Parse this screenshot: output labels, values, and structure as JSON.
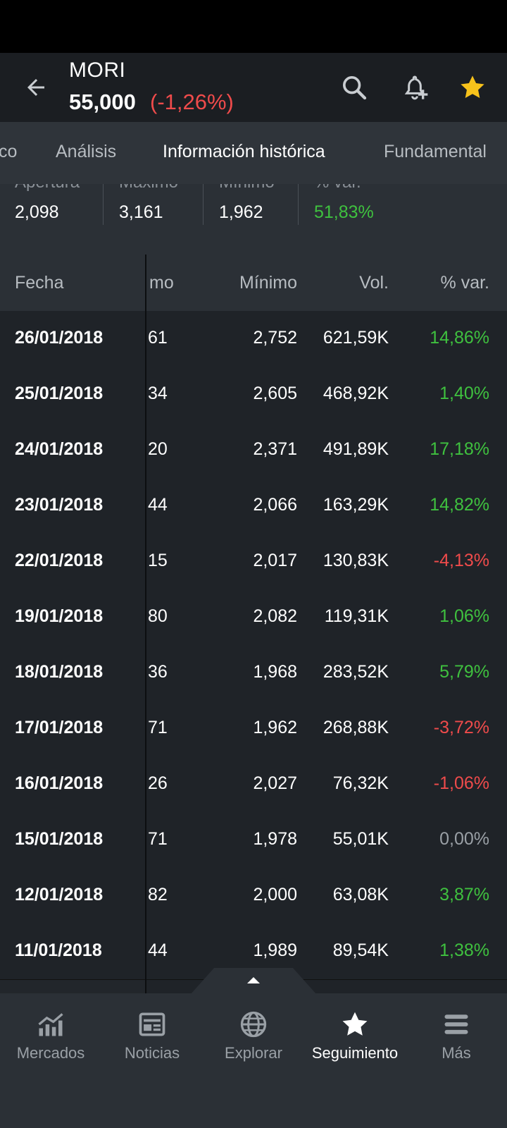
{
  "header": {
    "ticker": "MORI",
    "price": "55,000",
    "change": "(-1,26%)"
  },
  "tabs": [
    {
      "label": "co"
    },
    {
      "label": "Análisis"
    },
    {
      "label": "Información histórica"
    },
    {
      "label": "Fundamental"
    }
  ],
  "summary": [
    {
      "label": "Apertura",
      "value": "2,098"
    },
    {
      "label": "Máximo",
      "value": "3,161"
    },
    {
      "label": "Mínimo",
      "value": "1,962"
    },
    {
      "label": "% var.",
      "value": "51,83%"
    }
  ],
  "table": {
    "headers": {
      "date": "Fecha",
      "max": "mo",
      "min": "Mínimo",
      "vol": "Vol.",
      "var": "% var."
    },
    "rows": [
      {
        "date": "26/01/2018",
        "max": "61",
        "min": "2,752",
        "vol": "621,59K",
        "var": "14,86%"
      },
      {
        "date": "25/01/2018",
        "max": "34",
        "min": "2,605",
        "vol": "468,92K",
        "var": "1,40%"
      },
      {
        "date": "24/01/2018",
        "max": "20",
        "min": "2,371",
        "vol": "491,89K",
        "var": "17,18%"
      },
      {
        "date": "23/01/2018",
        "max": "44",
        "min": "2,066",
        "vol": "163,29K",
        "var": "14,82%"
      },
      {
        "date": "22/01/2018",
        "max": "15",
        "min": "2,017",
        "vol": "130,83K",
        "var": "-4,13%"
      },
      {
        "date": "19/01/2018",
        "max": "80",
        "min": "2,082",
        "vol": "119,31K",
        "var": "1,06%"
      },
      {
        "date": "18/01/2018",
        "max": "36",
        "min": "1,968",
        "vol": "283,52K",
        "var": "5,79%"
      },
      {
        "date": "17/01/2018",
        "max": "71",
        "min": "1,962",
        "vol": "268,88K",
        "var": "-3,72%"
      },
      {
        "date": "16/01/2018",
        "max": "26",
        "min": "2,027",
        "vol": "76,32K",
        "var": "-1,06%"
      },
      {
        "date": "15/01/2018",
        "max": "71",
        "min": "1,978",
        "vol": "55,01K",
        "var": "0,00%"
      },
      {
        "date": "12/01/2018",
        "max": "82",
        "min": "2,000",
        "vol": "63,08K",
        "var": "3,87%"
      },
      {
        "date": "11/01/2018",
        "max": "44",
        "min": "1,989",
        "vol": "89,54K",
        "var": "1,38%"
      }
    ]
  },
  "nav": [
    {
      "label": "Mercados",
      "icon": "markets-chart-icon"
    },
    {
      "label": "Noticias",
      "icon": "news-icon"
    },
    {
      "label": "Explorar",
      "icon": "globe-icon"
    },
    {
      "label": "Seguimiento",
      "icon": "star-icon"
    },
    {
      "label": "Más",
      "icon": "menu-icon"
    }
  ],
  "colors": {
    "positive": "#3fc13f",
    "negative": "#ef4b4b",
    "neutral": "#9aa0a6",
    "favorite": "#f7c21b"
  }
}
